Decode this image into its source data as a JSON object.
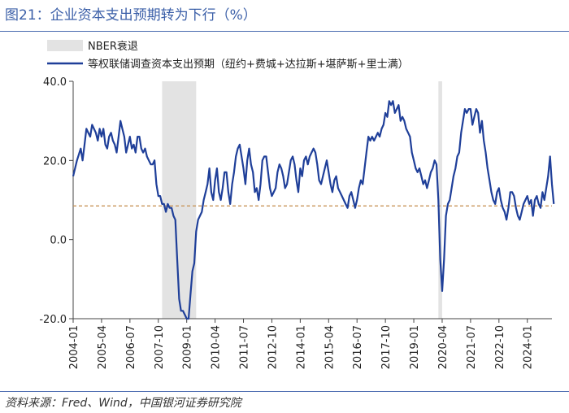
{
  "figure": {
    "title": "图21：企业资本支出预期转为下行（%）",
    "source": "资料来源：Fred、Wind，中国银河证券研究院"
  },
  "colors": {
    "series": "#1f3f99",
    "recession": "#e3e3e3",
    "reference": "#c8955a",
    "title": "#3b5fa8"
  },
  "chart_data": {
    "type": "line",
    "title": "",
    "xlabel": "",
    "ylabel": "",
    "ylim": [
      -20,
      40
    ],
    "yticks": [
      40,
      20,
      0,
      -20
    ],
    "ytick_labels": [
      "40.0",
      "20.0",
      "0.0",
      "-20.0"
    ],
    "xticks": [
      "2004-01",
      "2005-04",
      "2006-07",
      "2007-10",
      "2009-01",
      "2010-04",
      "2011-07",
      "2012-10",
      "2014-01",
      "2015-04",
      "2016-07",
      "2017-10",
      "2019-01",
      "2020-04",
      "2021-07",
      "2022-10",
      "2024-01"
    ],
    "xlim": [
      "2004-01",
      "2025-02"
    ],
    "legend": {
      "position": "top-left",
      "recession_label": "NBER衰退",
      "series_label": "等权联储调查资本支出预期（纽约+费城+达拉斯+堪萨斯+里士满）"
    },
    "recessions": [
      {
        "start": "2007-12",
        "end": "2009-06"
      },
      {
        "start": "2020-02",
        "end": "2020-04"
      }
    ],
    "reference_line": 8.5,
    "series": [
      {
        "name": "等权联储调查资本支出预期（纽约+费城+达拉斯+堪萨斯+里士满）",
        "points": [
          [
            "2004-01",
            16
          ],
          [
            "2004-03",
            20
          ],
          [
            "2004-05",
            23
          ],
          [
            "2004-06",
            20
          ],
          [
            "2004-07",
            24
          ],
          [
            "2004-08",
            28
          ],
          [
            "2004-09",
            27
          ],
          [
            "2004-10",
            26
          ],
          [
            "2004-11",
            29
          ],
          [
            "2004-12",
            28
          ],
          [
            "2005-01",
            27
          ],
          [
            "2005-02",
            25
          ],
          [
            "2005-03",
            28
          ],
          [
            "2005-04",
            26
          ],
          [
            "2005-05",
            28
          ],
          [
            "2005-06",
            24
          ],
          [
            "2005-07",
            23
          ],
          [
            "2005-08",
            26
          ],
          [
            "2005-09",
            27
          ],
          [
            "2005-10",
            25
          ],
          [
            "2005-11",
            24
          ],
          [
            "2005-12",
            22
          ],
          [
            "2006-01",
            26
          ],
          [
            "2006-02",
            30
          ],
          [
            "2006-03",
            28
          ],
          [
            "2006-04",
            26
          ],
          [
            "2006-05",
            22
          ],
          [
            "2006-06",
            24
          ],
          [
            "2006-07",
            26
          ],
          [
            "2006-08",
            23
          ],
          [
            "2006-09",
            24
          ],
          [
            "2006-10",
            22
          ],
          [
            "2006-11",
            26
          ],
          [
            "2006-12",
            26
          ],
          [
            "2007-01",
            23
          ],
          [
            "2007-02",
            22
          ],
          [
            "2007-03",
            23
          ],
          [
            "2007-04",
            21
          ],
          [
            "2007-05",
            20
          ],
          [
            "2007-06",
            19
          ],
          [
            "2007-07",
            19
          ],
          [
            "2007-08",
            20
          ],
          [
            "2007-09",
            14
          ],
          [
            "2007-10",
            11
          ],
          [
            "2007-11",
            11
          ],
          [
            "2007-12",
            9
          ],
          [
            "2008-01",
            9
          ],
          [
            "2008-02",
            7
          ],
          [
            "2008-03",
            9
          ],
          [
            "2008-04",
            8
          ],
          [
            "2008-05",
            8
          ],
          [
            "2008-06",
            6
          ],
          [
            "2008-07",
            5
          ],
          [
            "2008-08",
            -5
          ],
          [
            "2008-09",
            -15
          ],
          [
            "2008-10",
            -18
          ],
          [
            "2008-11",
            -18
          ],
          [
            "2008-12",
            -19
          ],
          [
            "2009-01",
            -20
          ],
          [
            "2009-02",
            -20
          ],
          [
            "2009-03",
            -14
          ],
          [
            "2009-04",
            -8
          ],
          [
            "2009-05",
            -6
          ],
          [
            "2009-06",
            2
          ],
          [
            "2009-07",
            5
          ],
          [
            "2009-08",
            6
          ],
          [
            "2009-09",
            7
          ],
          [
            "2009-10",
            10
          ],
          [
            "2009-11",
            12
          ],
          [
            "2009-12",
            14
          ],
          [
            "2010-01",
            18
          ],
          [
            "2010-02",
            12
          ],
          [
            "2010-03",
            10
          ],
          [
            "2010-04",
            15
          ],
          [
            "2010-05",
            18
          ],
          [
            "2010-06",
            12
          ],
          [
            "2010-07",
            10
          ],
          [
            "2010-08",
            13
          ],
          [
            "2010-09",
            17
          ],
          [
            "2010-10",
            17
          ],
          [
            "2010-11",
            12
          ],
          [
            "2010-12",
            9
          ],
          [
            "2011-01",
            14
          ],
          [
            "2011-02",
            17
          ],
          [
            "2011-03",
            21
          ],
          [
            "2011-04",
            23
          ],
          [
            "2011-05",
            24
          ],
          [
            "2011-06",
            21
          ],
          [
            "2011-07",
            18
          ],
          [
            "2011-08",
            14
          ],
          [
            "2011-09",
            20
          ],
          [
            "2011-10",
            23
          ],
          [
            "2011-11",
            19
          ],
          [
            "2011-12",
            17
          ],
          [
            "2012-01",
            12
          ],
          [
            "2012-02",
            13
          ],
          [
            "2012-03",
            10
          ],
          [
            "2012-04",
            14
          ],
          [
            "2012-05",
            20
          ],
          [
            "2012-06",
            21
          ],
          [
            "2012-07",
            21
          ],
          [
            "2012-08",
            17
          ],
          [
            "2012-09",
            13
          ],
          [
            "2012-10",
            11
          ],
          [
            "2012-11",
            12
          ],
          [
            "2012-12",
            13
          ],
          [
            "2013-01",
            17
          ],
          [
            "2013-02",
            19
          ],
          [
            "2013-03",
            18
          ],
          [
            "2013-04",
            16
          ],
          [
            "2013-05",
            13
          ],
          [
            "2013-06",
            14
          ],
          [
            "2013-07",
            17
          ],
          [
            "2013-08",
            20
          ],
          [
            "2013-09",
            21
          ],
          [
            "2013-10",
            19
          ],
          [
            "2013-11",
            15
          ],
          [
            "2013-12",
            12
          ],
          [
            "2014-01",
            18
          ],
          [
            "2014-02",
            16
          ],
          [
            "2014-03",
            20
          ],
          [
            "2014-04",
            21
          ],
          [
            "2014-05",
            19
          ],
          [
            "2014-06",
            21
          ],
          [
            "2014-07",
            22
          ],
          [
            "2014-08",
            23
          ],
          [
            "2014-09",
            22
          ],
          [
            "2014-10",
            19
          ],
          [
            "2014-11",
            15
          ],
          [
            "2014-12",
            14
          ],
          [
            "2015-01",
            16
          ],
          [
            "2015-02",
            18
          ],
          [
            "2015-03",
            20
          ],
          [
            "2015-04",
            17
          ],
          [
            "2015-05",
            14
          ],
          [
            "2015-06",
            12
          ],
          [
            "2015-07",
            15
          ],
          [
            "2015-08",
            16
          ],
          [
            "2015-09",
            13
          ],
          [
            "2015-10",
            12
          ],
          [
            "2015-11",
            11
          ],
          [
            "2015-12",
            10
          ],
          [
            "2016-01",
            9
          ],
          [
            "2016-02",
            8
          ],
          [
            "2016-03",
            11
          ],
          [
            "2016-04",
            12
          ],
          [
            "2016-05",
            10
          ],
          [
            "2016-06",
            8
          ],
          [
            "2016-07",
            10
          ],
          [
            "2016-08",
            13
          ],
          [
            "2016-09",
            15
          ],
          [
            "2016-10",
            14
          ],
          [
            "2016-11",
            18
          ],
          [
            "2016-12",
            22
          ],
          [
            "2017-01",
            26
          ],
          [
            "2017-02",
            25
          ],
          [
            "2017-03",
            26
          ],
          [
            "2017-04",
            25
          ],
          [
            "2017-05",
            26
          ],
          [
            "2017-06",
            27
          ],
          [
            "2017-07",
            26
          ],
          [
            "2017-08",
            28
          ],
          [
            "2017-09",
            29
          ],
          [
            "2017-10",
            32
          ],
          [
            "2017-11",
            31
          ],
          [
            "2017-12",
            35
          ],
          [
            "2018-01",
            34
          ],
          [
            "2018-02",
            35
          ],
          [
            "2018-03",
            32
          ],
          [
            "2018-04",
            33
          ],
          [
            "2018-05",
            34
          ],
          [
            "2018-06",
            30
          ],
          [
            "2018-07",
            31
          ],
          [
            "2018-08",
            30
          ],
          [
            "2018-09",
            28
          ],
          [
            "2018-10",
            27
          ],
          [
            "2018-11",
            26
          ],
          [
            "2018-12",
            22
          ],
          [
            "2019-01",
            20
          ],
          [
            "2019-02",
            18
          ],
          [
            "2019-03",
            17
          ],
          [
            "2019-04",
            18
          ],
          [
            "2019-05",
            16
          ],
          [
            "2019-06",
            14
          ],
          [
            "2019-07",
            15
          ],
          [
            "2019-08",
            13
          ],
          [
            "2019-09",
            15
          ],
          [
            "2019-10",
            17
          ],
          [
            "2019-11",
            18
          ],
          [
            "2019-12",
            20
          ],
          [
            "2020-01",
            19
          ],
          [
            "2020-02",
            10
          ],
          [
            "2020-03",
            -5
          ],
          [
            "2020-04",
            -13
          ],
          [
            "2020-05",
            -5
          ],
          [
            "2020-06",
            6
          ],
          [
            "2020-07",
            9
          ],
          [
            "2020-08",
            10
          ],
          [
            "2020-09",
            13
          ],
          [
            "2020-10",
            16
          ],
          [
            "2020-11",
            18
          ],
          [
            "2020-12",
            21
          ],
          [
            "2021-01",
            22
          ],
          [
            "2021-02",
            27
          ],
          [
            "2021-03",
            30
          ],
          [
            "2021-04",
            33
          ],
          [
            "2021-05",
            32
          ],
          [
            "2021-06",
            33
          ],
          [
            "2021-07",
            33
          ],
          [
            "2021-08",
            29
          ],
          [
            "2021-09",
            31
          ],
          [
            "2021-10",
            33
          ],
          [
            "2021-11",
            32
          ],
          [
            "2021-12",
            27
          ],
          [
            "2022-01",
            30
          ],
          [
            "2022-02",
            25
          ],
          [
            "2022-03",
            22
          ],
          [
            "2022-04",
            18
          ],
          [
            "2022-05",
            15
          ],
          [
            "2022-06",
            12
          ],
          [
            "2022-07",
            10
          ],
          [
            "2022-08",
            9
          ],
          [
            "2022-09",
            12
          ],
          [
            "2022-10",
            13
          ],
          [
            "2022-11",
            10
          ],
          [
            "2022-12",
            8
          ],
          [
            "2023-01",
            7
          ],
          [
            "2023-02",
            5
          ],
          [
            "2023-03",
            8
          ],
          [
            "2023-04",
            12
          ],
          [
            "2023-05",
            12
          ],
          [
            "2023-06",
            11
          ],
          [
            "2023-07",
            8
          ],
          [
            "2023-08",
            6
          ],
          [
            "2023-09",
            5
          ],
          [
            "2023-10",
            7
          ],
          [
            "2023-11",
            9
          ],
          [
            "2023-12",
            10
          ],
          [
            "2024-01",
            11
          ],
          [
            "2024-02",
            9
          ],
          [
            "2024-03",
            10
          ],
          [
            "2024-04",
            6
          ],
          [
            "2024-05",
            10
          ],
          [
            "2024-06",
            11
          ],
          [
            "2024-07",
            9
          ],
          [
            "2024-08",
            8
          ],
          [
            "2024-09",
            12
          ],
          [
            "2024-10",
            10
          ],
          [
            "2024-11",
            13
          ],
          [
            "2024-12",
            16
          ],
          [
            "2025-01",
            21
          ],
          [
            "2025-02",
            14
          ],
          [
            "2025-03",
            9
          ]
        ]
      }
    ]
  }
}
